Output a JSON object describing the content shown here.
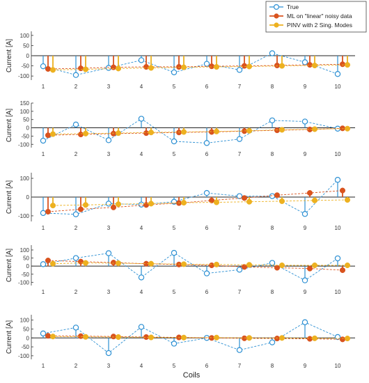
{
  "figure": {
    "xlabel": "Coils",
    "legend_position": "top-right"
  },
  "colors": {
    "true": "#2b8fd3",
    "ml": "#d9531e",
    "pinv": "#edb120"
  },
  "chart_data": [
    {
      "type": "stem",
      "ylabel": "Current [A]",
      "ylim": [
        -120,
        120
      ],
      "yticks": [
        -100,
        -50,
        0,
        50,
        100
      ],
      "x": [
        1,
        2,
        3,
        4,
        5,
        6,
        7,
        8,
        9,
        10
      ],
      "series": [
        {
          "name": "True",
          "values": [
            -52,
            -95,
            -60,
            -22,
            -82,
            -40,
            -70,
            12,
            -32,
            -90
          ]
        },
        {
          "name": "ML on \"linear\" noisy data",
          "values": [
            -65,
            -62,
            -57,
            -55,
            -55,
            -52,
            -50,
            -48,
            -45,
            -42
          ]
        },
        {
          "name": "PINV with 2 Sing. Modes",
          "values": [
            -70,
            -67,
            -63,
            -60,
            -57,
            -55,
            -53,
            -50,
            -48,
            -45
          ]
        }
      ]
    },
    {
      "type": "stem",
      "ylabel": "Current [A]",
      "ylim": [
        -120,
        150
      ],
      "yticks": [
        -100,
        -50,
        0,
        50,
        100,
        150
      ],
      "x": [
        1,
        2,
        3,
        4,
        5,
        6,
        7,
        8,
        9,
        10
      ],
      "series": [
        {
          "name": "True",
          "values": [
            -78,
            20,
            -75,
            55,
            -82,
            -92,
            -68,
            45,
            38,
            -5
          ]
        },
        {
          "name": "ML on \"linear\" noisy data",
          "values": [
            -45,
            -40,
            -35,
            -32,
            -28,
            -25,
            -20,
            -15,
            -10,
            -3
          ]
        },
        {
          "name": "PINV with 2 Sing. Modes",
          "values": [
            -38,
            -35,
            -32,
            -28,
            -25,
            -22,
            -18,
            -12,
            -8,
            -5
          ]
        }
      ]
    },
    {
      "type": "stem",
      "ylabel": "Current [A]",
      "ylim": [
        -130,
        130
      ],
      "yticks": [
        -100,
        0,
        100
      ],
      "x": [
        1,
        2,
        3,
        4,
        5,
        6,
        7,
        8,
        9,
        10
      ],
      "series": [
        {
          "name": "True",
          "values": [
            -85,
            -92,
            -35,
            -40,
            -25,
            22,
            5,
            5,
            -90,
            92
          ]
        },
        {
          "name": "ML on \"linear\" noisy data",
          "values": [
            -78,
            -65,
            -55,
            -42,
            -32,
            -18,
            -5,
            10,
            22,
            35
          ]
        },
        {
          "name": "PINV with 2 Sing. Modes",
          "values": [
            -45,
            -42,
            -38,
            -35,
            -30,
            -28,
            -25,
            -22,
            -18,
            -15
          ]
        }
      ]
    },
    {
      "type": "stem",
      "ylabel": "Current [A]",
      "ylim": [
        -120,
        130
      ],
      "yticks": [
        -100,
        -50,
        0,
        50,
        100
      ],
      "x": [
        1,
        2,
        3,
        4,
        5,
        6,
        7,
        8,
        9,
        10
      ],
      "series": [
        {
          "name": "True",
          "values": [
            12,
            50,
            80,
            -70,
            82,
            -45,
            -22,
            20,
            -88,
            48
          ]
        },
        {
          "name": "ML on \"linear\" noisy data",
          "values": [
            35,
            28,
            22,
            15,
            10,
            5,
            -5,
            -10,
            -15,
            -25
          ]
        },
        {
          "name": "PINV with 2 Sing. Modes",
          "values": [
            15,
            20,
            18,
            15,
            12,
            10,
            8,
            5,
            5,
            5
          ]
        }
      ]
    },
    {
      "type": "stem",
      "ylabel": "Current [A]",
      "ylim": [
        -120,
        130
      ],
      "yticks": [
        -100,
        -50,
        0,
        50,
        100
      ],
      "x": [
        1,
        2,
        3,
        4,
        5,
        6,
        7,
        8,
        9,
        10
      ],
      "series": [
        {
          "name": "True",
          "values": [
            25,
            58,
            -85,
            62,
            -32,
            0,
            -68,
            -25,
            88,
            5
          ]
        },
        {
          "name": "ML on \"linear\" noisy data",
          "values": [
            12,
            10,
            8,
            5,
            3,
            0,
            -2,
            -3,
            -5,
            -8
          ]
        },
        {
          "name": "PINV with 2 Sing. Modes",
          "values": [
            8,
            6,
            5,
            3,
            2,
            2,
            0,
            0,
            -2,
            -3
          ]
        }
      ]
    }
  ]
}
